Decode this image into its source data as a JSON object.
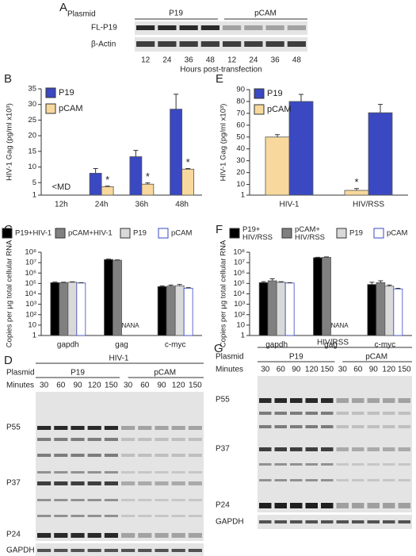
{
  "panel_labels": [
    "A",
    "B",
    "C",
    "D",
    "E",
    "F",
    "G"
  ],
  "chart_data": [
    {
      "type": "bar",
      "ylabel": "HIV-1 Gag (pg/ml x10³)",
      "categories": [
        "12h",
        "24h",
        "36h",
        "48h"
      ],
      "series": [
        {
          "name": "P19",
          "color": "#3a48c2",
          "values": [
            null,
            8,
            13.3,
            28.5
          ],
          "errors": [
            null,
            1.5,
            2,
            4.8
          ]
        },
        {
          "name": "pCAM",
          "color": "#f8d89c",
          "values": [
            null,
            3.7,
            4.5,
            9.3
          ],
          "errors": [
            null,
            0.2,
            0.4,
            0.2
          ]
        }
      ],
      "ylim": [
        1,
        35
      ],
      "yticks": [
        1,
        5,
        10,
        15,
        20,
        25,
        30,
        35
      ],
      "legend": "upper left",
      "annotations": [
        {
          "text": "<MD",
          "x": "12h"
        },
        {
          "text": "*",
          "x": "24h",
          "series": "pCAM"
        },
        {
          "text": "*",
          "x": "36h",
          "series": "pCAM"
        },
        {
          "text": "*",
          "x": "48h",
          "series": "pCAM"
        }
      ]
    },
    {
      "type": "bar",
      "log": true,
      "ylabel": "Copies per µg total cellular RNA",
      "categories": [
        "gapdh",
        "gag",
        "c-myc"
      ],
      "series": [
        {
          "name": "P19+HIV-1",
          "color": "#000000",
          "values": [
            120000,
            20000000,
            50000
          ],
          "errors": [
            15000,
            2000000,
            8000
          ]
        },
        {
          "name": "pCAM+HIV-1",
          "color": "#808080",
          "values": [
            120000,
            17000000,
            55000
          ],
          "errors": [
            12000,
            1500000,
            15000
          ]
        },
        {
          "name": "P19",
          "color": "#d9d9d9",
          "values": [
            130000,
            null,
            60000
          ],
          "errors": [
            15000,
            null,
            20000
          ],
          "value_labels": [
            null,
            "NA",
            null
          ]
        },
        {
          "name": "pCAM",
          "color": "#ffffff",
          "values": [
            110000,
            null,
            35000
          ],
          "errors": [
            10000,
            null,
            5000
          ],
          "value_labels": [
            null,
            "NA",
            null
          ]
        }
      ],
      "ylim": [
        1,
        100000000
      ],
      "legend": "top",
      "yticks": [
        1,
        10,
        {
          "value": 100,
          "label": "10²"
        },
        {
          "value": 1000,
          "label": "10³"
        },
        {
          "value": 10000,
          "label": "10⁴"
        },
        {
          "value": 100000,
          "label": "10⁵"
        },
        {
          "value": 1000000,
          "label": "10⁶"
        },
        {
          "value": 10000000,
          "label": "10⁷"
        },
        {
          "value": 100000000,
          "label": "10⁸"
        }
      ]
    },
    {
      "type": "bar",
      "ylabel": "HIV-1 Gag (pg/ml x10³)",
      "categories": [
        "HIV-1",
        "HIV/RSS"
      ],
      "series": [
        {
          "name": "P19",
          "color": "#3a48c2",
          "values": [
            80,
            70.5
          ],
          "errors": [
            6,
            7
          ]
        },
        {
          "name": "pCAM",
          "color": "#f8d89c",
          "values": [
            50,
            5
          ],
          "errors": [
            2,
            1.5
          ]
        }
      ],
      "ylim": [
        1,
        90
      ],
      "yticks": [
        1,
        10,
        20,
        30,
        40,
        50,
        60,
        70,
        80,
        90
      ],
      "legend": "upper left",
      "annotations": [
        {
          "text": "*",
          "x": "HIV/RSS",
          "series": "pCAM"
        }
      ]
    },
    {
      "type": "bar",
      "log": true,
      "ylabel": "Copies per µg total cellular RNA",
      "categories": [
        "gapdh",
        "gag",
        "c-myc"
      ],
      "series": [
        {
          "name": "P19+ HIV/RSS",
          "color": "#000000",
          "values": [
            120000,
            30000000,
            80000
          ],
          "errors": [
            30000,
            3000000,
            50000
          ]
        },
        {
          "name": "pCAM+ HIV/RSS",
          "color": "#808080",
          "values": [
            180000,
            32000000,
            120000
          ],
          "errors": [
            100000,
            4000000,
            60000
          ]
        },
        {
          "name": "P19",
          "color": "#d9d9d9",
          "values": [
            130000,
            null,
            55000
          ],
          "errors": [
            20000,
            null,
            15000
          ],
          "value_labels": [
            null,
            "NA",
            null
          ]
        },
        {
          "name": "pCAM",
          "color": "#ffffff",
          "values": [
            110000,
            null,
            30000
          ],
          "errors": [
            10000,
            null,
            4000
          ],
          "value_labels": [
            null,
            "NA",
            null
          ]
        }
      ],
      "ylim": [
        1,
        100000000
      ],
      "legend": "top",
      "yticks": [
        1,
        10,
        {
          "value": 100,
          "label": "10²"
        },
        {
          "value": 1000,
          "label": "10³"
        },
        {
          "value": 10000,
          "label": "10⁴"
        },
        {
          "value": 100000,
          "label": "10⁵"
        },
        {
          "value": 1000000,
          "label": "10⁶"
        },
        {
          "value": 10000000,
          "label": "10⁷"
        },
        {
          "value": 100000000,
          "label": "10⁸"
        }
      ]
    }
  ],
  "gels": [
    {
      "plasmid_label": "Plasmid",
      "groups": [
        "P19",
        "pCAM"
      ],
      "rows": [
        "FL-P19",
        "β-Actin"
      ],
      "lanes": [
        12,
        24,
        36,
        48,
        12,
        24,
        36,
        48
      ],
      "x_label": "Hours post-transfection"
    },
    {
      "title": "HIV-1",
      "plasmid_label": "Plasmid",
      "groups": [
        "P19",
        "pCAM"
      ],
      "lanes_label": "Minutes",
      "lanes": [
        30,
        60,
        90,
        120,
        150,
        30,
        60,
        90,
        120,
        150
      ],
      "bands": [
        "P55",
        "P37",
        "P24"
      ],
      "loading": "GAPDH"
    },
    {
      "title": "HIV/RSS",
      "plasmid_label": "Plasmid",
      "groups": [
        "P19",
        "pCAM"
      ],
      "lanes_label": "Minutes",
      "lanes": [
        30,
        60,
        90,
        120,
        150,
        30,
        60,
        90,
        120,
        150
      ],
      "bands": [
        "P55",
        "P37",
        "P24"
      ],
      "loading": "GAPDH"
    }
  ]
}
